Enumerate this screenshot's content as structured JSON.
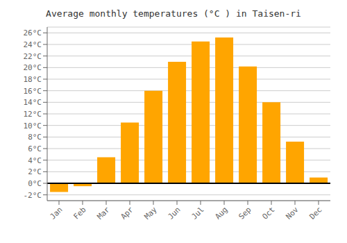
{
  "chart_data": {
    "type": "bar",
    "title": "Average monthly temperatures (°C ) in Taisen-ri",
    "categories": [
      "Jan",
      "Feb",
      "Mar",
      "Apr",
      "May",
      "Jun",
      "Jul",
      "Aug",
      "Sep",
      "Oct",
      "Nov",
      "Dec"
    ],
    "values": [
      -1.5,
      -0.5,
      4.5,
      10.5,
      16.0,
      21.0,
      24.5,
      25.2,
      20.2,
      14.0,
      7.2,
      1.0
    ],
    "color": "#FFA500",
    "ylim": [
      -3,
      27
    ],
    "yticks": [
      {
        "value": -2,
        "label": "-2°C"
      },
      {
        "value": 0,
        "label": "0°C"
      },
      {
        "value": 2,
        "label": "2°C"
      },
      {
        "value": 4,
        "label": "4°C"
      },
      {
        "value": 6,
        "label": "6°C"
      },
      {
        "value": 8,
        "label": "8°C"
      },
      {
        "value": 10,
        "label": "10°C"
      },
      {
        "value": 12,
        "label": "12°C"
      },
      {
        "value": 14,
        "label": "14°C"
      },
      {
        "value": 16,
        "label": "16°C"
      },
      {
        "value": 18,
        "label": "18°C"
      },
      {
        "value": 20,
        "label": "20°C"
      },
      {
        "value": 22,
        "label": "22°C"
      },
      {
        "value": 24,
        "label": "24°C"
      },
      {
        "value": 26,
        "label": "26°C"
      }
    ],
    "grid": true
  }
}
